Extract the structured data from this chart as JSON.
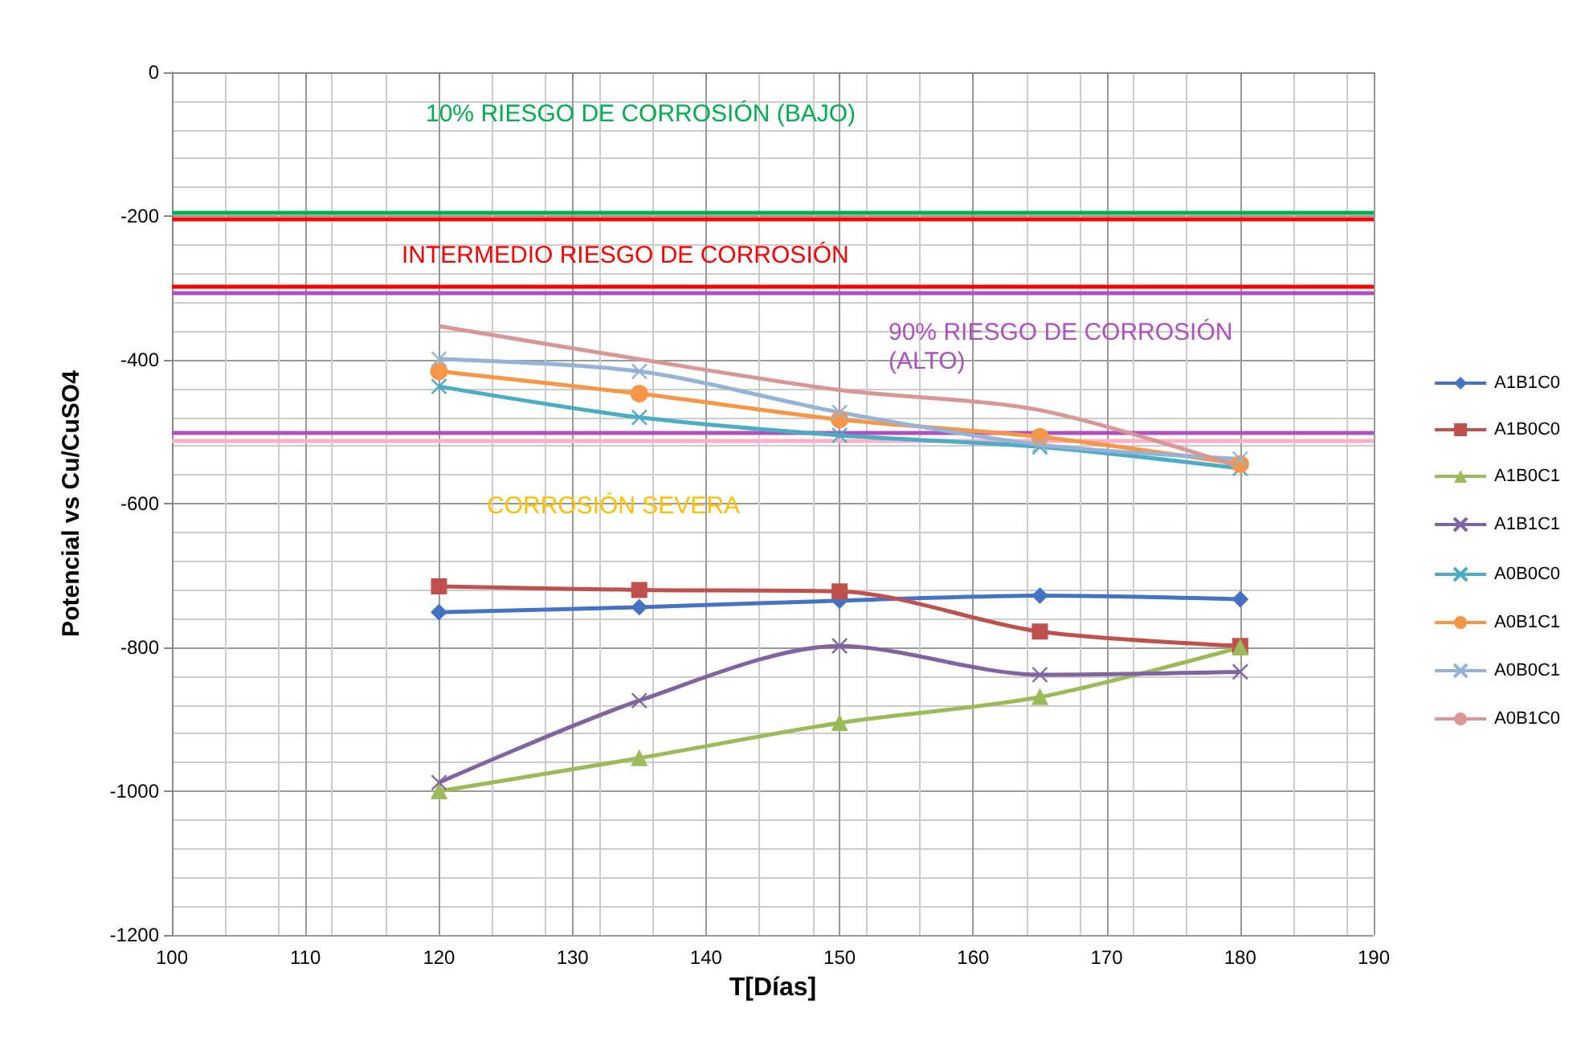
{
  "chart_data": {
    "type": "line",
    "xlabel": "T[Días]",
    "ylabel": "Potencial vs Cu/CuSO4",
    "x": [
      120,
      135,
      150,
      165,
      180
    ],
    "series": [
      {
        "name": "A1B1C0",
        "color": "#4472c4",
        "marker": "diamond",
        "values": [
          -751,
          -744,
          -735,
          -728,
          -733
        ]
      },
      {
        "name": "A1B0C0",
        "color": "#c0504d",
        "marker": "square",
        "values": [
          -715,
          -720,
          -722,
          -778,
          -798
        ]
      },
      {
        "name": "A1B0C1",
        "color": "#9bbb59",
        "marker": "triangle",
        "values": [
          -1000,
          -954,
          -905,
          -869,
          -800
        ]
      },
      {
        "name": "A1B1C1",
        "color": "#8064a2",
        "marker": "cross",
        "values": [
          -988,
          -874,
          -798,
          -838,
          -834
        ]
      },
      {
        "name": "A0B0C0",
        "color": "#4bacc6",
        "marker": "cross",
        "values": [
          -437,
          -480,
          -505,
          -521,
          -551
        ]
      },
      {
        "name": "A0B1C1",
        "color": "#f79646",
        "marker": "circle",
        "values": [
          -416,
          -447,
          -483,
          -507,
          -545
        ]
      },
      {
        "name": "A0B0C1",
        "color": "#95b3d7",
        "marker": "cross",
        "values": [
          -399,
          -416,
          -473,
          -518,
          -538
        ]
      },
      {
        "name": "A0B1C0",
        "color": "#d99694",
        "marker": "none",
        "values": [
          -353,
          -399,
          -442,
          -470,
          -549
        ]
      }
    ],
    "xlim": [
      100,
      190
    ],
    "xticks": [
      100,
      110,
      120,
      130,
      140,
      150,
      160,
      170,
      180,
      190
    ],
    "ylim": [
      -1200,
      0
    ],
    "yticks": [
      -1200,
      -1000,
      -800,
      -600,
      -400,
      -200,
      0
    ],
    "grid": true,
    "legend": "right",
    "ref_lines": [
      {
        "axis": "y",
        "value": -203,
        "color": "#ff0000"
      },
      {
        "axis": "y",
        "value": -195,
        "color": "#00b050"
      },
      {
        "axis": "y",
        "value": -298,
        "color": "#ff0000"
      },
      {
        "axis": "y",
        "value": -307,
        "color": "#b050c0"
      },
      {
        "axis": "y",
        "value": -500,
        "color": "#b050c0"
      },
      {
        "axis": "y",
        "value": -512,
        "color": "#ffb0c8"
      }
    ],
    "annotations": [
      "10% RIESGO DE CORROSIÓN (BAJO)",
      "INTERMEDIO RIESGO DE CORROSIÓN",
      "90% RIESGO DE CORROSIÓN (ALTO)",
      "CORROSIÓN SEVERA"
    ]
  }
}
